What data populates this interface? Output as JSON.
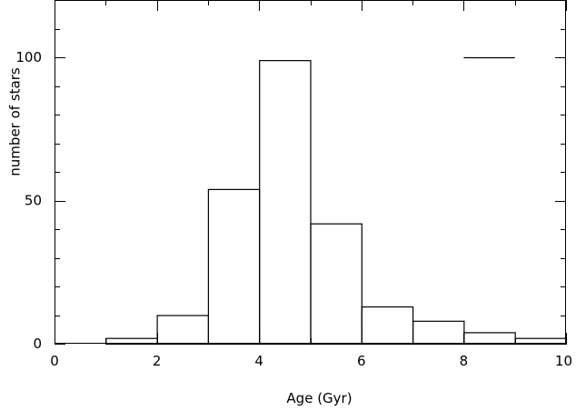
{
  "chart_data": {
    "type": "bar",
    "title": "",
    "xlabel": "Age (Gyr)",
    "ylabel": "number of stars",
    "xlim": [
      0,
      10
    ],
    "ylim": [
      0,
      120
    ],
    "x_ticks": [
      "0",
      "2",
      "4",
      "6",
      "8",
      "10"
    ],
    "y_ticks": [
      "0",
      "50",
      "100"
    ],
    "bins": [
      {
        "from": 0,
        "to": 1,
        "value": 0
      },
      {
        "from": 1,
        "to": 2,
        "value": 2
      },
      {
        "from": 2,
        "to": 3,
        "value": 10
      },
      {
        "from": 3,
        "to": 4,
        "value": 54
      },
      {
        "from": 4,
        "to": 5,
        "value": 99
      },
      {
        "from": 5,
        "to": 6,
        "value": 42
      },
      {
        "from": 6,
        "to": 7,
        "value": 13
      },
      {
        "from": 7,
        "to": 8,
        "value": 8
      },
      {
        "from": 8,
        "to": 9,
        "value": 4
      },
      {
        "from": 9,
        "to": 10,
        "value": 2
      }
    ],
    "error_bar": {
      "x_from": 8,
      "x_to": 9,
      "y": 100
    },
    "grid": false,
    "colors": {
      "line": "#000000",
      "background": "#ffffff"
    }
  }
}
